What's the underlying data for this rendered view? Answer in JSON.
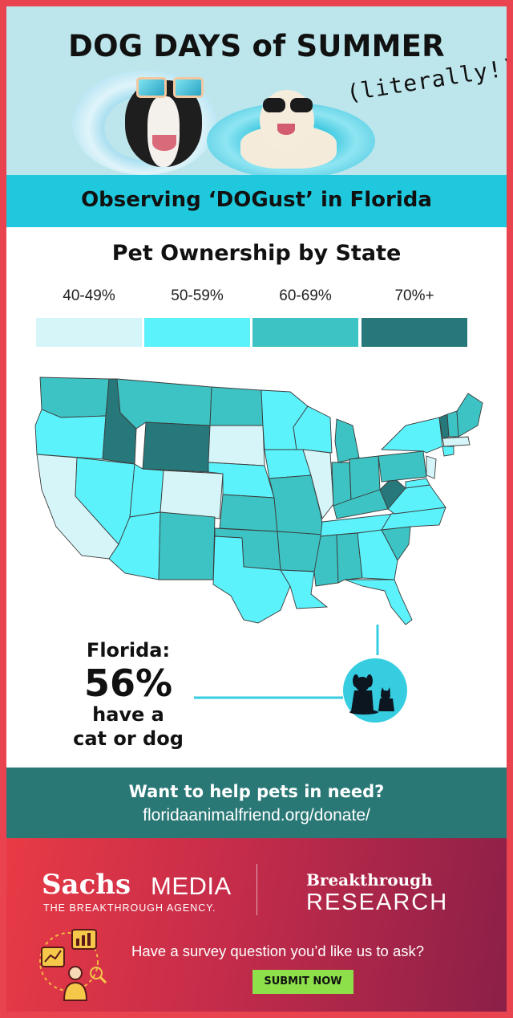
{
  "header": {
    "title": "DOG DAYS of SUMMER",
    "subtitle": "(literally!)"
  },
  "banner": {
    "text": "Observing ‘DOGust’ in Florida"
  },
  "chart_data": {
    "type": "choropleth",
    "title": "Pet Ownership by State",
    "legend": [
      {
        "label": "40-49%",
        "color": "#d6f5f8"
      },
      {
        "label": "50-59%",
        "color": "#5cf2fb"
      },
      {
        "label": "60-69%",
        "color": "#3dc3c3"
      },
      {
        "label": "70%+",
        "color": "#27787a"
      }
    ],
    "highlight": {
      "state": "Florida",
      "value": 56,
      "unit": "%"
    }
  },
  "callout": {
    "state_label": "Florida:",
    "percent": "56%",
    "line1": "have a",
    "line2": "cat or dog"
  },
  "donate": {
    "question": "Want to help pets in need?",
    "url": "floridaanimalfriend.org/donate/"
  },
  "footer": {
    "brand_sachs": "Sachs",
    "brand_media": "MEDIA",
    "brand_tagline": "THE BREAKTHROUGH AGENCY.",
    "research_top": "Breakthrough",
    "research_bottom": "RESEARCH",
    "survey_prompt": "Have a survey question you’d like us to ask?",
    "submit_label": "SUBMIT NOW"
  }
}
